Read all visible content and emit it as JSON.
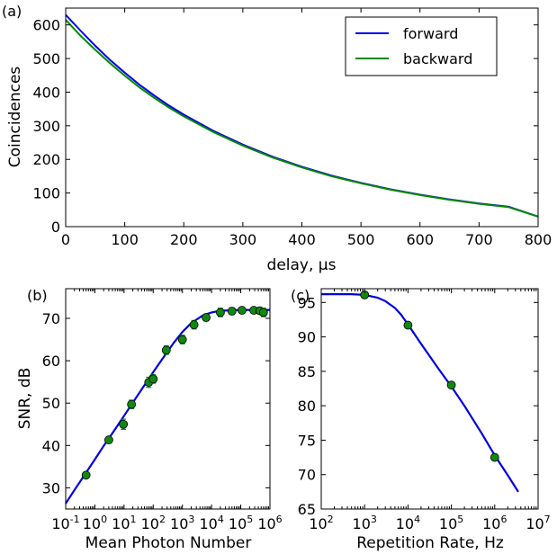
{
  "chart_data": [
    {
      "type": "line",
      "panel_label": "(a)",
      "xlabel": "delay, μs",
      "ylabel": "Coincidences",
      "xlim": [
        0,
        800
      ],
      "ylim": [
        0,
        650
      ],
      "xticks": [
        "0",
        "100",
        "200",
        "300",
        "400",
        "500",
        "600",
        "700",
        "800"
      ],
      "yticks": [
        "0",
        "100",
        "200",
        "300",
        "400",
        "500",
        "600"
      ],
      "legend_position": "top-right",
      "series": [
        {
          "name": "forward",
          "color": "#0000ee",
          "x": [
            0,
            25,
            50,
            75,
            100,
            125,
            150,
            175,
            200,
            250,
            300,
            350,
            400,
            450,
            500,
            550,
            600,
            650,
            700,
            750,
            800
          ],
          "y": [
            630,
            583,
            538,
            496,
            458,
            422,
            390,
            360,
            333,
            285,
            244,
            208,
            178,
            152,
            130,
            111,
            95,
            81,
            69,
            59,
            30
          ]
        },
        {
          "name": "backward",
          "color": "#008800",
          "x": [
            0,
            25,
            50,
            75,
            100,
            125,
            150,
            175,
            200,
            250,
            300,
            350,
            400,
            450,
            500,
            550,
            600,
            650,
            700,
            750,
            800
          ],
          "y": [
            615,
            568,
            526,
            486,
            449,
            414,
            383,
            354,
            328,
            281,
            241,
            206,
            176,
            150,
            129,
            110,
            94,
            80,
            68,
            58,
            30
          ]
        }
      ]
    },
    {
      "type": "scatter",
      "panel_label": "(b)",
      "xlabel": "Mean Photon Number",
      "ylabel": "SNR, dB",
      "xscale": "log",
      "xlim": [
        0.1,
        1000000
      ],
      "ylim": [
        25,
        77
      ],
      "xticks": [
        {
          "base": "10",
          "exp": "-1"
        },
        {
          "base": "10",
          "exp": "0"
        },
        {
          "base": "10",
          "exp": "1"
        },
        {
          "base": "10",
          "exp": "2"
        },
        {
          "base": "10",
          "exp": "3"
        },
        {
          "base": "10",
          "exp": "4"
        },
        {
          "base": "10",
          "exp": "5"
        },
        {
          "base": "10",
          "exp": "6"
        }
      ],
      "yticks": [
        "30",
        "40",
        "50",
        "60",
        "70"
      ],
      "fit_color": "#0000dd",
      "marker_color": "#118811",
      "points": {
        "x": [
          0.5,
          3,
          9.5,
          18,
          70,
          100,
          280,
          1000,
          2500,
          6500,
          20000,
          50000,
          110000,
          280000,
          450000,
          600000
        ],
        "y": [
          33.0,
          41.3,
          45.0,
          49.7,
          54.9,
          55.7,
          62.5,
          65.0,
          68.5,
          70.2,
          71.4,
          71.7,
          71.9,
          71.9,
          71.8,
          71.4
        ],
        "err": [
          0.6,
          0.6,
          1.2,
          1.0,
          1.2,
          1.0,
          1.0,
          1.0,
          1.0,
          0.8,
          1.0,
          0.8,
          0.6,
          0.6,
          0.6,
          1.0
        ]
      },
      "fit": {
        "x": [
          0.1,
          0.2,
          0.5,
          1,
          2,
          5,
          10,
          20,
          50,
          100,
          200,
          500,
          1000,
          2000,
          5000,
          10000,
          20000,
          50000,
          100000,
          200000,
          500000,
          1000000
        ],
        "y": [
          26.3,
          29.5,
          33.6,
          36.7,
          39.9,
          43.9,
          47.0,
          50.1,
          54.2,
          57.3,
          60.3,
          64.2,
          66.8,
          68.9,
          70.7,
          71.4,
          71.8,
          71.9,
          72.0,
          72.0,
          72.0,
          72.0
        ]
      }
    },
    {
      "type": "scatter",
      "panel_label": "(c)",
      "xlabel": "Repetition Rate, Hz",
      "xscale": "log",
      "xlim": [
        100,
        10000000
      ],
      "ylim": [
        65,
        97
      ],
      "xticks": [
        {
          "base": "10",
          "exp": "2"
        },
        {
          "base": "10",
          "exp": "3"
        },
        {
          "base": "10",
          "exp": "4"
        },
        {
          "base": "10",
          "exp": "5"
        },
        {
          "base": "10",
          "exp": "6"
        },
        {
          "base": "10",
          "exp": "7"
        }
      ],
      "yticks": [
        "65",
        "70",
        "75",
        "80",
        "85",
        "90",
        "95"
      ],
      "fit_color": "#0000dd",
      "marker_color": "#118811",
      "points": {
        "x": [
          1000,
          10000,
          100000,
          1000000
        ],
        "y": [
          96.1,
          91.7,
          83.0,
          72.5
        ]
      },
      "fit": {
        "x": [
          100,
          200,
          500,
          1000,
          2000,
          3000,
          5000,
          7000,
          10000,
          20000,
          50000,
          100000,
          200000,
          500000,
          1000000,
          2000000,
          3500000
        ],
        "y": [
          96.2,
          96.2,
          96.2,
          96.1,
          95.7,
          95.2,
          94.2,
          93.2,
          91.8,
          89.0,
          85.4,
          82.8,
          80.0,
          76.0,
          72.8,
          69.9,
          67.5
        ]
      }
    }
  ]
}
